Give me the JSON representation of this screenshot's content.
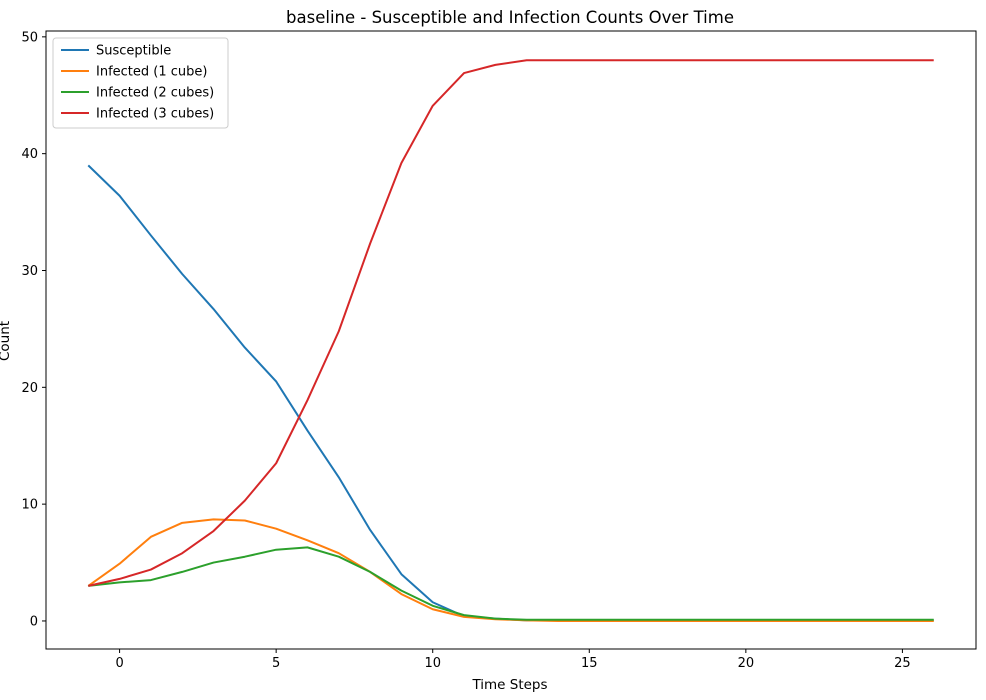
{
  "chart_data": {
    "type": "line",
    "title": "baseline - Susceptible and Infection Counts Over Time",
    "xlabel": "Time Steps",
    "ylabel": "Count",
    "xlim": [
      -2.35,
      27.35
    ],
    "ylim": [
      -2.4,
      50.5
    ],
    "xticks": [
      0,
      5,
      10,
      15,
      20,
      25
    ],
    "yticks": [
      0,
      10,
      20,
      30,
      40,
      50
    ],
    "grid": false,
    "legend_position": "top-left",
    "x": [
      -1,
      0,
      1,
      2,
      3,
      4,
      5,
      6,
      7,
      8,
      9,
      10,
      11,
      12,
      13,
      14,
      15,
      16,
      17,
      18,
      19,
      20,
      21,
      22,
      23,
      24,
      25,
      26
    ],
    "series": [
      {
        "name": "Susceptible",
        "color": "#1f77b4",
        "values": [
          39.0,
          36.4,
          33.0,
          29.7,
          26.7,
          23.4,
          20.5,
          16.3,
          12.3,
          7.8,
          4.0,
          1.6,
          0.4,
          0.2,
          0.05,
          0.05,
          0.05,
          0.05,
          0.05,
          0.05,
          0.05,
          0.05,
          0.05,
          0.05,
          0.05,
          0.05,
          0.05,
          0.05
        ]
      },
      {
        "name": "Infected (1 cube)",
        "color": "#ff7f0e",
        "values": [
          3.0,
          4.9,
          7.2,
          8.4,
          8.7,
          8.6,
          7.9,
          6.9,
          5.8,
          4.2,
          2.3,
          1.0,
          0.35,
          0.15,
          0.05,
          0.0,
          0.0,
          0.0,
          0.0,
          0.0,
          0.0,
          0.0,
          0.0,
          0.0,
          0.0,
          0.0,
          0.0,
          0.0
        ]
      },
      {
        "name": "Infected (2 cubes)",
        "color": "#2ca02c",
        "values": [
          3.0,
          3.3,
          3.5,
          4.2,
          5.0,
          5.5,
          6.1,
          6.3,
          5.5,
          4.2,
          2.6,
          1.3,
          0.5,
          0.2,
          0.1,
          0.1,
          0.1,
          0.1,
          0.1,
          0.1,
          0.1,
          0.1,
          0.1,
          0.1,
          0.1,
          0.1,
          0.1,
          0.1
        ]
      },
      {
        "name": "Infected (3 cubes)",
        "color": "#d62728",
        "values": [
          3.0,
          3.6,
          4.4,
          5.8,
          7.7,
          10.3,
          13.5,
          18.9,
          24.8,
          32.3,
          39.2,
          44.1,
          46.9,
          47.6,
          48.0,
          48.0,
          48.0,
          48.0,
          48.0,
          48.0,
          48.0,
          48.0,
          48.0,
          48.0,
          48.0,
          48.0,
          48.0,
          48.0
        ]
      }
    ]
  }
}
